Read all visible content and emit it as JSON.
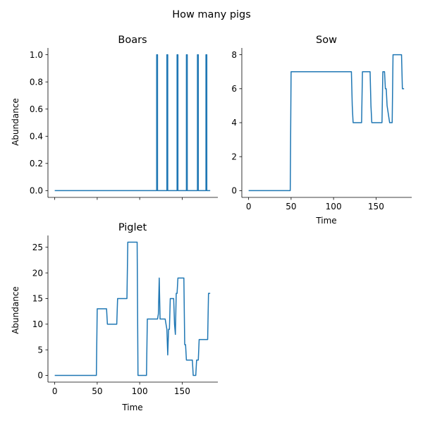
{
  "figure": {
    "title": "How many pigs"
  },
  "colors": {
    "line": "#1f77b4",
    "axis": "#000000"
  },
  "chart_data": [
    {
      "type": "line",
      "title": "Boars",
      "xlabel": "",
      "ylabel": "Abundance",
      "xlim": [
        -8,
        192
      ],
      "ylim": [
        -0.05,
        1.05
      ],
      "xticks": [
        0,
        50,
        100,
        150
      ],
      "xtick_labels_visible": false,
      "yticks": [
        0.0,
        0.2,
        0.4,
        0.6,
        0.8,
        1.0
      ],
      "ytick_labels": [
        "0.0",
        "0.2",
        "0.4",
        "0.6",
        "0.8",
        "1.0"
      ],
      "grid": false,
      "x": [
        0,
        120,
        120,
        121,
        121,
        132,
        132,
        133,
        133,
        144,
        144,
        145,
        145,
        155,
        155,
        156,
        156,
        168,
        168,
        169,
        169,
        178,
        178,
        179,
        179,
        183
      ],
      "y": [
        0,
        0,
        1,
        1,
        0,
        0,
        1,
        1,
        0,
        0,
        1,
        1,
        0,
        0,
        1,
        1,
        0,
        0,
        1,
        1,
        0,
        0,
        1,
        1,
        0,
        0
      ]
    },
    {
      "type": "line",
      "title": "Sow",
      "xlabel": "Time",
      "ylabel": "",
      "xlim": [
        -8,
        192
      ],
      "ylim": [
        -0.4,
        8.4
      ],
      "xticks": [
        0,
        50,
        100,
        150
      ],
      "xtick_labels": [
        "0",
        "50",
        "100",
        "150"
      ],
      "yticks": [
        0,
        2,
        4,
        6,
        8
      ],
      "ytick_labels": [
        "0",
        "2",
        "4",
        "6",
        "8"
      ],
      "grid": false,
      "x": [
        0,
        49,
        50,
        121,
        122,
        123,
        133,
        134,
        143,
        144,
        145,
        157,
        158,
        160,
        161,
        162,
        163,
        166,
        167,
        169,
        170,
        180,
        181,
        183
      ],
      "y": [
        0,
        0,
        7,
        7,
        5,
        4,
        4,
        7,
        7,
        5,
        4,
        4,
        7,
        7,
        6,
        6,
        5,
        4,
        4,
        4,
        8,
        8,
        6,
        6
      ]
    },
    {
      "type": "line",
      "title": "Piglet",
      "xlabel": "Time",
      "ylabel": "Abundance",
      "xlim": [
        -8,
        192
      ],
      "ylim": [
        -1.3,
        27.3
      ],
      "xticks": [
        0,
        50,
        100,
        150
      ],
      "xtick_labels": [
        "0",
        "50",
        "100",
        "150"
      ],
      "yticks": [
        0,
        5,
        10,
        15,
        20,
        25
      ],
      "ytick_labels": [
        "0",
        "5",
        "10",
        "15",
        "20",
        "25"
      ],
      "grid": false,
      "x": [
        0,
        49,
        50,
        61,
        62,
        73,
        74,
        85,
        86,
        97,
        98,
        108,
        109,
        121,
        122,
        123,
        124,
        130,
        131,
        132,
        133,
        134,
        135,
        136,
        140,
        141,
        142,
        143,
        144,
        145,
        146,
        152,
        153,
        154,
        155,
        162,
        163,
        165,
        166,
        167,
        168,
        169,
        170,
        171,
        172,
        180,
        181,
        183
      ],
      "y": [
        0,
        0,
        13,
        13,
        10,
        10,
        15,
        15,
        26,
        26,
        0,
        0,
        11,
        11,
        12,
        19,
        11,
        11,
        10,
        9,
        4,
        9,
        9,
        15,
        15,
        10,
        8,
        16,
        16,
        19,
        19,
        19,
        6,
        6,
        3,
        3,
        0,
        0,
        0,
        3,
        3,
        3,
        7,
        7,
        7,
        7,
        16,
        16
      ]
    }
  ]
}
